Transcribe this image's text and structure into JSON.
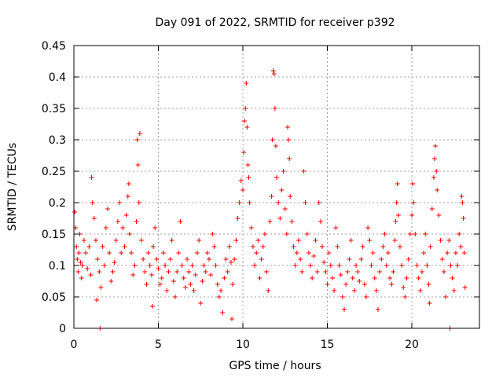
{
  "chart_data": {
    "type": "scatter",
    "title": "Day 091 of 2022, SRMTID for receiver p392",
    "xlabel": "GPS time / hours",
    "ylabel": "SRMTID / TECUs",
    "xlim": [
      0,
      24
    ],
    "ylim": [
      0,
      0.45
    ],
    "xticks": [
      0,
      5,
      10,
      15,
      20
    ],
    "yticks": [
      0,
      0.05,
      0.1,
      0.15,
      0.2,
      0.25,
      0.3,
      0.35,
      0.4,
      0.45
    ],
    "ytick_labels": [
      "0",
      "0.05",
      "0.1",
      "0.15",
      "0.2",
      "0.25",
      "0.3",
      "0.35",
      "0.4",
      "0.45"
    ],
    "grid": true,
    "marker": "+",
    "series": [
      {
        "name": "SRMTID",
        "color": "#ff0000",
        "points": [
          [
            0.05,
            0.185
          ],
          [
            0.1,
            0.16
          ],
          [
            0.15,
            0.13
          ],
          [
            0.2,
            0.11
          ],
          [
            0.25,
            0.09
          ],
          [
            0.3,
            0.12
          ],
          [
            0.35,
            0.15
          ],
          [
            0.4,
            0.105
          ],
          [
            0.45,
            0.08
          ],
          [
            0.5,
            0.1
          ],
          [
            0.6,
            0.14
          ],
          [
            0.7,
            0.12
          ],
          [
            0.8,
            0.095
          ],
          [
            0.9,
            0.13
          ],
          [
            1.0,
            0.085
          ],
          [
            1.05,
            0.24
          ],
          [
            1.1,
            0.2
          ],
          [
            1.2,
            0.175
          ],
          [
            1.3,
            0.14
          ],
          [
            1.35,
            0.045
          ],
          [
            1.4,
            0.11
          ],
          [
            1.5,
            0.09
          ],
          [
            1.55,
            0.0
          ],
          [
            1.6,
            0.065
          ],
          [
            1.7,
            0.13
          ],
          [
            1.8,
            0.1
          ],
          [
            1.9,
            0.16
          ],
          [
            2.0,
            0.19
          ],
          [
            2.1,
            0.12
          ],
          [
            2.2,
            0.075
          ],
          [
            2.3,
            0.09
          ],
          [
            2.4,
            0.105
          ],
          [
            2.5,
            0.14
          ],
          [
            2.6,
            0.17
          ],
          [
            2.7,
            0.2
          ],
          [
            2.8,
            0.12
          ],
          [
            2.9,
            0.16
          ],
          [
            3.0,
            0.13
          ],
          [
            3.1,
            0.18
          ],
          [
            3.2,
            0.21
          ],
          [
            3.25,
            0.23
          ],
          [
            3.3,
            0.15
          ],
          [
            3.4,
            0.12
          ],
          [
            3.5,
            0.085
          ],
          [
            3.6,
            0.1
          ],
          [
            3.7,
            0.17
          ],
          [
            3.75,
            0.3
          ],
          [
            3.8,
            0.26
          ],
          [
            3.85,
            0.2
          ],
          [
            3.9,
            0.31
          ],
          [
            4.0,
            0.14
          ],
          [
            4.1,
            0.11
          ],
          [
            4.2,
            0.09
          ],
          [
            4.3,
            0.07
          ],
          [
            4.4,
            0.12
          ],
          [
            4.5,
            0.1
          ],
          [
            4.6,
            0.085
          ],
          [
            4.65,
            0.035
          ],
          [
            4.7,
            0.13
          ],
          [
            4.8,
            0.16
          ],
          [
            4.9,
            0.11
          ],
          [
            5.0,
            0.095
          ],
          [
            5.1,
            0.07
          ],
          [
            5.2,
            0.08
          ],
          [
            5.3,
            0.12
          ],
          [
            5.4,
            0.1
          ],
          [
            5.5,
            0.06
          ],
          [
            5.6,
            0.09
          ],
          [
            5.7,
            0.11
          ],
          [
            5.8,
            0.14
          ],
          [
            5.9,
            0.075
          ],
          [
            6.0,
            0.05
          ],
          [
            6.1,
            0.09
          ],
          [
            6.2,
            0.12
          ],
          [
            6.3,
            0.17
          ],
          [
            6.4,
            0.1
          ],
          [
            6.5,
            0.08
          ],
          [
            6.6,
            0.065
          ],
          [
            6.7,
            0.11
          ],
          [
            6.8,
            0.09
          ],
          [
            6.9,
            0.07
          ],
          [
            7.0,
            0.1
          ],
          [
            7.1,
            0.06
          ],
          [
            7.2,
            0.085
          ],
          [
            7.3,
            0.12
          ],
          [
            7.4,
            0.14
          ],
          [
            7.5,
            0.04
          ],
          [
            7.6,
            0.075
          ],
          [
            7.7,
            0.1
          ],
          [
            7.8,
            0.09
          ],
          [
            7.9,
            0.12
          ],
          [
            8.0,
            0.11
          ],
          [
            8.1,
            0.085
          ],
          [
            8.2,
            0.15
          ],
          [
            8.3,
            0.13
          ],
          [
            8.4,
            0.1
          ],
          [
            8.5,
            0.07
          ],
          [
            8.6,
            0.05
          ],
          [
            8.7,
            0.06
          ],
          [
            8.8,
            0.025
          ],
          [
            8.9,
            0.08
          ],
          [
            9.0,
            0.11
          ],
          [
            9.1,
            0.09
          ],
          [
            9.2,
            0.13
          ],
          [
            9.3,
            0.105
          ],
          [
            9.35,
            0.015
          ],
          [
            9.4,
            0.07
          ],
          [
            9.5,
            0.11
          ],
          [
            9.6,
            0.14
          ],
          [
            9.7,
            0.175
          ],
          [
            9.8,
            0.2
          ],
          [
            9.9,
            0.235
          ],
          [
            10.0,
            0.22
          ],
          [
            10.05,
            0.28
          ],
          [
            10.1,
            0.33
          ],
          [
            10.15,
            0.35
          ],
          [
            10.2,
            0.39
          ],
          [
            10.25,
            0.32
          ],
          [
            10.3,
            0.26
          ],
          [
            10.35,
            0.24
          ],
          [
            10.4,
            0.2
          ],
          [
            10.5,
            0.16
          ],
          [
            10.6,
            0.13
          ],
          [
            10.7,
            0.1
          ],
          [
            10.8,
            0.12
          ],
          [
            10.9,
            0.14
          ],
          [
            11.0,
            0.08
          ],
          [
            11.1,
            0.11
          ],
          [
            11.2,
            0.13
          ],
          [
            11.3,
            0.15
          ],
          [
            11.4,
            0.09
          ],
          [
            11.5,
            0.06
          ],
          [
            11.6,
            0.17
          ],
          [
            11.7,
            0.21
          ],
          [
            11.75,
            0.3
          ],
          [
            11.8,
            0.41
          ],
          [
            11.85,
            0.405
          ],
          [
            11.9,
            0.35
          ],
          [
            11.95,
            0.29
          ],
          [
            12.0,
            0.24
          ],
          [
            12.1,
            0.2
          ],
          [
            12.2,
            0.175
          ],
          [
            12.3,
            0.22
          ],
          [
            12.4,
            0.25
          ],
          [
            12.5,
            0.19
          ],
          [
            12.6,
            0.15
          ],
          [
            12.65,
            0.32
          ],
          [
            12.7,
            0.3
          ],
          [
            12.75,
            0.27
          ],
          [
            12.8,
            0.21
          ],
          [
            12.9,
            0.17
          ],
          [
            13.0,
            0.13
          ],
          [
            13.1,
            0.1
          ],
          [
            13.2,
            0.12
          ],
          [
            13.3,
            0.14
          ],
          [
            13.4,
            0.11
          ],
          [
            13.5,
            0.09
          ],
          [
            13.6,
            0.25
          ],
          [
            13.7,
            0.2
          ],
          [
            13.8,
            0.15
          ],
          [
            13.9,
            0.12
          ],
          [
            14.0,
            0.1
          ],
          [
            14.1,
            0.08
          ],
          [
            14.2,
            0.115
          ],
          [
            14.3,
            0.14
          ],
          [
            14.4,
            0.09
          ],
          [
            14.5,
            0.2
          ],
          [
            14.6,
            0.17
          ],
          [
            14.7,
            0.13
          ],
          [
            14.8,
            0.105
          ],
          [
            14.9,
            0.09
          ],
          [
            15.0,
            0.07
          ],
          [
            15.1,
            0.12
          ],
          [
            15.2,
            0.1
          ],
          [
            15.3,
            0.08
          ],
          [
            15.4,
            0.06
          ],
          [
            15.5,
            0.16
          ],
          [
            15.6,
            0.13
          ],
          [
            15.7,
            0.1
          ],
          [
            15.8,
            0.085
          ],
          [
            15.9,
            0.05
          ],
          [
            16.0,
            0.03
          ],
          [
            16.1,
            0.07
          ],
          [
            16.2,
            0.09
          ],
          [
            16.3,
            0.11
          ],
          [
            16.4,
            0.14
          ],
          [
            16.5,
            0.08
          ],
          [
            16.6,
            0.06
          ],
          [
            16.7,
            0.1
          ],
          [
            16.8,
            0.09
          ],
          [
            16.9,
            0.075
          ],
          [
            17.0,
            0.11
          ],
          [
            17.1,
            0.13
          ],
          [
            17.2,
            0.07
          ],
          [
            17.3,
            0.05
          ],
          [
            17.4,
            0.16
          ],
          [
            17.5,
            0.14
          ],
          [
            17.6,
            0.1
          ],
          [
            17.7,
            0.12
          ],
          [
            17.8,
            0.08
          ],
          [
            17.9,
            0.06
          ],
          [
            18.0,
            0.03
          ],
          [
            18.1,
            0.09
          ],
          [
            18.2,
            0.11
          ],
          [
            18.3,
            0.13
          ],
          [
            18.4,
            0.15
          ],
          [
            18.5,
            0.1
          ],
          [
            18.6,
            0.12
          ],
          [
            18.7,
            0.08
          ],
          [
            18.8,
            0.07
          ],
          [
            18.9,
            0.09
          ],
          [
            19.0,
            0.14
          ],
          [
            19.05,
            0.17
          ],
          [
            19.1,
            0.2
          ],
          [
            19.15,
            0.23
          ],
          [
            19.2,
            0.18
          ],
          [
            19.3,
            0.13
          ],
          [
            19.4,
            0.1
          ],
          [
            19.5,
            0.065
          ],
          [
            19.6,
            0.05
          ],
          [
            19.7,
            0.08
          ],
          [
            19.8,
            0.11
          ],
          [
            19.9,
            0.15
          ],
          [
            20.0,
            0.18
          ],
          [
            20.05,
            0.23
          ],
          [
            20.1,
            0.2
          ],
          [
            20.2,
            0.15
          ],
          [
            20.3,
            0.1
          ],
          [
            20.4,
            0.08
          ],
          [
            20.5,
            0.06
          ],
          [
            20.6,
            0.09
          ],
          [
            20.7,
            0.12
          ],
          [
            20.8,
            0.15
          ],
          [
            20.9,
            0.1
          ],
          [
            21.0,
            0.07
          ],
          [
            21.05,
            0.04
          ],
          [
            21.1,
            0.13
          ],
          [
            21.2,
            0.19
          ],
          [
            21.3,
            0.24
          ],
          [
            21.35,
            0.27
          ],
          [
            21.4,
            0.29
          ],
          [
            21.45,
            0.25
          ],
          [
            21.5,
            0.22
          ],
          [
            21.6,
            0.18
          ],
          [
            21.7,
            0.14
          ],
          [
            21.8,
            0.11
          ],
          [
            21.9,
            0.09
          ],
          [
            22.0,
            0.05
          ],
          [
            22.1,
            0.12
          ],
          [
            22.2,
            0.14
          ],
          [
            22.25,
            0.0
          ],
          [
            22.3,
            0.1
          ],
          [
            22.4,
            0.08
          ],
          [
            22.5,
            0.06
          ],
          [
            22.6,
            0.12
          ],
          [
            22.7,
            0.1
          ],
          [
            22.8,
            0.15
          ],
          [
            22.9,
            0.13
          ],
          [
            22.95,
            0.21
          ],
          [
            23.0,
            0.2
          ],
          [
            23.05,
            0.175
          ],
          [
            23.1,
            0.12
          ],
          [
            23.15,
            0.065
          ]
        ]
      }
    ]
  }
}
